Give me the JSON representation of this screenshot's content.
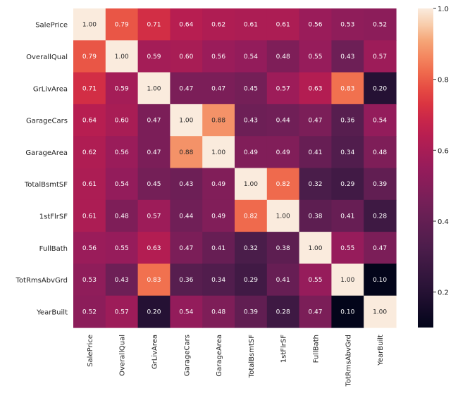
{
  "chart_data": {
    "type": "heatmap",
    "title": "",
    "labels": [
      "SalePrice",
      "OverallQual",
      "GrLivArea",
      "GarageCars",
      "GarageArea",
      "TotalBsmtSF",
      "1stFlrSF",
      "FullBath",
      "TotRmsAbvGrd",
      "YearBuilt"
    ],
    "matrix": [
      [
        1.0,
        0.79,
        0.71,
        0.64,
        0.62,
        0.61,
        0.61,
        0.56,
        0.53,
        0.52
      ],
      [
        0.79,
        1.0,
        0.59,
        0.6,
        0.56,
        0.54,
        0.48,
        0.55,
        0.43,
        0.57
      ],
      [
        0.71,
        0.59,
        1.0,
        0.47,
        0.47,
        0.45,
        0.57,
        0.63,
        0.83,
        0.2
      ],
      [
        0.64,
        0.6,
        0.47,
        1.0,
        0.88,
        0.43,
        0.44,
        0.47,
        0.36,
        0.54
      ],
      [
        0.62,
        0.56,
        0.47,
        0.88,
        1.0,
        0.49,
        0.49,
        0.41,
        0.34,
        0.48
      ],
      [
        0.61,
        0.54,
        0.45,
        0.43,
        0.49,
        1.0,
        0.82,
        0.32,
        0.29,
        0.39
      ],
      [
        0.61,
        0.48,
        0.57,
        0.44,
        0.49,
        0.82,
        1.0,
        0.38,
        0.41,
        0.28
      ],
      [
        0.56,
        0.55,
        0.63,
        0.47,
        0.41,
        0.32,
        0.38,
        1.0,
        0.55,
        0.47
      ],
      [
        0.53,
        0.43,
        0.83,
        0.36,
        0.34,
        0.29,
        0.41,
        0.55,
        1.0,
        0.1
      ],
      [
        0.52,
        0.57,
        0.2,
        0.54,
        0.48,
        0.39,
        0.28,
        0.47,
        0.1,
        1.0
      ]
    ],
    "colorbar": {
      "range": [
        0.1,
        1.0
      ],
      "ticks": [
        "1.0",
        "0.8",
        "0.6",
        "0.4",
        "0.2"
      ],
      "colormap": "rocket"
    },
    "grid": false,
    "legend": "right"
  }
}
